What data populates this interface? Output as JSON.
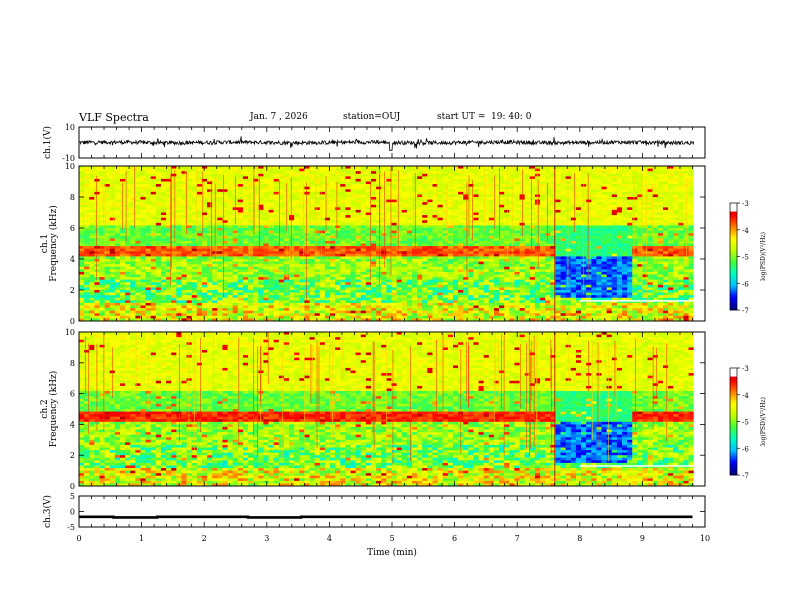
{
  "header": {
    "title": "VLF Spectra",
    "date": "Jan. 7 , 2026",
    "station": "station=OUJ",
    "start_label": "start UT = ",
    "start_time": "19: 40: 0"
  },
  "chart_data": [
    {
      "type": "line",
      "panel": "ch1-waveform",
      "ylabel": "ch.1(V)",
      "ylim": [
        -10,
        10
      ],
      "y_tick_labels": [
        "10",
        "-10"
      ],
      "series": [
        {
          "x": [
            0,
            1,
            2,
            3,
            4,
            5,
            6,
            7,
            8,
            9,
            9.8
          ],
          "values": [
            0,
            0.5,
            -0.3,
            0.4,
            -1,
            0.2,
            -0.4,
            0.6,
            0.3,
            0.9,
            0.2
          ]
        }
      ]
    },
    {
      "type": "heatmap",
      "panel": "ch1-spectrogram",
      "ylabel": "ch.1",
      "ylabel2": "Frequency (kHz)",
      "ylim": [
        0,
        10
      ],
      "y_tick_labels": [
        "0",
        "2",
        "4",
        "6",
        "8",
        "10"
      ],
      "colorbar_label": "log(PSD)(V²/Hz)",
      "colorbar_ticks": [
        "-3",
        "-4",
        "-5",
        "-6",
        "-7"
      ]
    },
    {
      "type": "heatmap",
      "panel": "ch2-spectrogram",
      "ylabel": "ch.2",
      "ylabel2": "Frequency (kHz)",
      "ylim": [
        0,
        10
      ],
      "y_tick_labels": [
        "0",
        "2",
        "4",
        "6",
        "8",
        "10"
      ],
      "colorbar_label": "log(PSD)(V²/Hz)",
      "colorbar_ticks": [
        "-3",
        "-4",
        "-5",
        "-6",
        "-7"
      ]
    },
    {
      "type": "line",
      "panel": "ch3-trigger",
      "ylabel": "ch.3(V)",
      "ylim": [
        -5,
        5
      ],
      "y_tick_labels": [
        "5",
        "0",
        "-5"
      ],
      "xlabel": "Time (min)",
      "xlim": [
        0,
        10
      ],
      "x_tick_labels": [
        "0",
        "1",
        "2",
        "3",
        "4",
        "5",
        "6",
        "7",
        "8",
        "9",
        "10"
      ],
      "series": [
        {
          "x": [
            0,
            0.55,
            0.55,
            1.25,
            1.25,
            2.7,
            2.7,
            3.55,
            3.55,
            9.8
          ],
          "values": [
            -1.7,
            -1.7,
            -1.9,
            -1.9,
            -1.7,
            -1.7,
            -1.9,
            -1.9,
            -1.7,
            -1.7
          ]
        }
      ]
    }
  ],
  "colors": {
    "background": "#ffffff",
    "axis": "#000000",
    "colormap": [
      "#000080",
      "#0000ff",
      "#00c0ff",
      "#00ffc0",
      "#40ff40",
      "#c0ff00",
      "#ffff00",
      "#ff8000",
      "#ff0000",
      "#c00000",
      "#ffffff"
    ]
  }
}
